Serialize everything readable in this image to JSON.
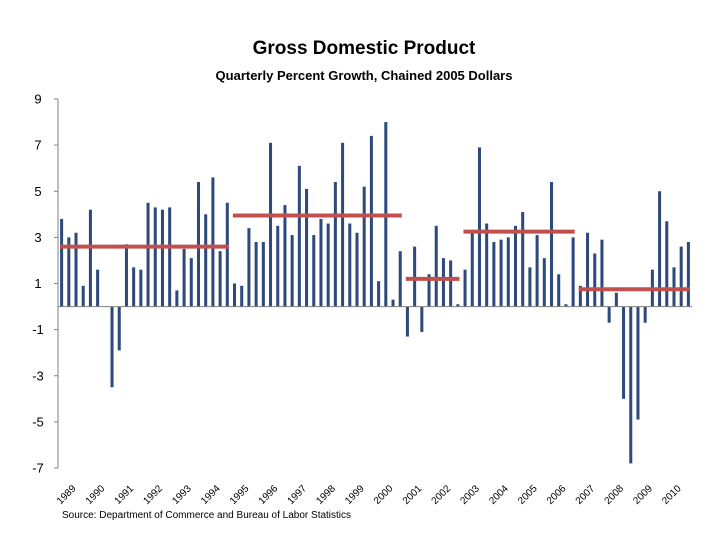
{
  "chart_data": {
    "type": "bar",
    "title": "Gross Domestic Product",
    "subtitle": "Quarterly Percent Growth, Chained 2005 Dollars",
    "source": "Source: Department of Commerce and Bureau of Labor Statistics",
    "ylim": [
      -7,
      9
    ],
    "yticks": [
      "9",
      "7",
      "5",
      "3",
      "1",
      "-1",
      "-3",
      "-5",
      "-7"
    ],
    "ytick_values": [
      9,
      7,
      5,
      3,
      1,
      -1,
      -3,
      -5,
      -7
    ],
    "year_labels": [
      "1989",
      "1990",
      "1991",
      "1992",
      "1993",
      "1994",
      "1995",
      "1996",
      "1997",
      "1998",
      "1999",
      "2000",
      "2001",
      "2002",
      "2003",
      "2004",
      "2005",
      "2006",
      "2007",
      "2008",
      "2009",
      "2010"
    ],
    "start_year": 1989,
    "values": [
      3.8,
      3.0,
      3.2,
      0.9,
      4.2,
      1.6,
      0.0,
      -3.5,
      -1.9,
      2.7,
      1.7,
      1.6,
      4.5,
      4.3,
      4.2,
      4.3,
      0.7,
      2.5,
      2.1,
      5.4,
      4.0,
      5.6,
      2.4,
      4.5,
      1.0,
      0.9,
      3.4,
      2.8,
      2.8,
      7.1,
      3.5,
      4.4,
      3.1,
      6.1,
      5.1,
      3.1,
      3.8,
      3.6,
      5.4,
      7.1,
      3.6,
      3.2,
      5.2,
      7.4,
      1.1,
      8.0,
      0.3,
      2.4,
      -1.3,
      2.6,
      -1.1,
      1.4,
      3.5,
      2.1,
      2.0,
      0.1,
      1.6,
      3.2,
      6.9,
      3.6,
      2.8,
      2.9,
      3.0,
      3.5,
      4.1,
      1.7,
      3.1,
      2.1,
      5.4,
      1.4,
      0.1,
      3.0,
      0.9,
      3.2,
      2.3,
      2.9,
      -0.7,
      0.6,
      -4.0,
      -6.8,
      -4.9,
      -0.7,
      1.6,
      5.0,
      3.7,
      1.7,
      2.6,
      2.8
    ],
    "averages": [
      {
        "label": "1989-1994 average",
        "value": 2.6,
        "from_index": 0,
        "to_index": 23
      },
      {
        "label": "1995-2000 average",
        "value": 3.95,
        "from_index": 24,
        "to_index": 47
      },
      {
        "label": "2001-2002 average",
        "value": 1.2,
        "from_index": 48,
        "to_index": 55
      },
      {
        "label": "2003-2006 average",
        "value": 3.25,
        "from_index": 56,
        "to_index": 71
      },
      {
        "label": "2007-2010 average",
        "value": 0.75,
        "from_index": 72,
        "to_index": 87
      }
    ],
    "colors": {
      "bar": "#2e4a7a",
      "average": "#c0504d",
      "axis": "#808080"
    }
  }
}
